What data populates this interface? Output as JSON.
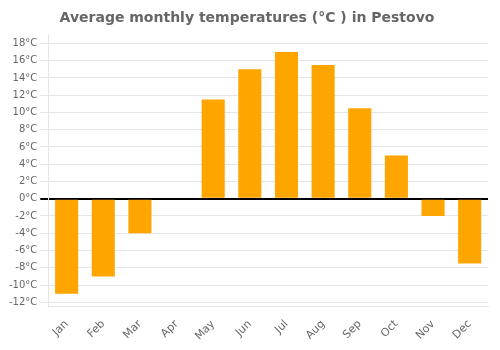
{
  "chart_data": {
    "type": "bar",
    "title": "Average monthly temperatures (°C ) in Pestovo",
    "categories": [
      "Jan",
      "Feb",
      "Mar",
      "Apr",
      "May",
      "Jun",
      "Jul",
      "Aug",
      "Sep",
      "Oct",
      "Nov",
      "Dec"
    ],
    "values": [
      -11,
      -9,
      -4,
      0,
      11.5,
      15,
      17,
      15.5,
      10.5,
      5,
      -2,
      -7.5
    ],
    "color": "#FFA500",
    "ylim": [
      -12.5,
      19
    ],
    "yticks": [
      {
        "value": -12,
        "label": "-12°C"
      },
      {
        "value": -10,
        "label": "-10°C"
      },
      {
        "value": -8,
        "label": "-8°C"
      },
      {
        "value": -6,
        "label": "-6°C"
      },
      {
        "value": -4,
        "label": "-4°C"
      },
      {
        "value": -2,
        "label": "-2°C"
      },
      {
        "value": 0,
        "label": "0°C"
      },
      {
        "value": 2,
        "label": "2°C"
      },
      {
        "value": 4,
        "label": "4°C"
      },
      {
        "value": 6,
        "label": "6°C"
      },
      {
        "value": 8,
        "label": "8°C"
      },
      {
        "value": 10,
        "label": "10°C"
      },
      {
        "value": 12,
        "label": "12°C"
      },
      {
        "value": 14,
        "label": "14°C"
      },
      {
        "value": 16,
        "label": "16°C"
      },
      {
        "value": 18,
        "label": "18°C"
      }
    ],
    "grid": true
  }
}
